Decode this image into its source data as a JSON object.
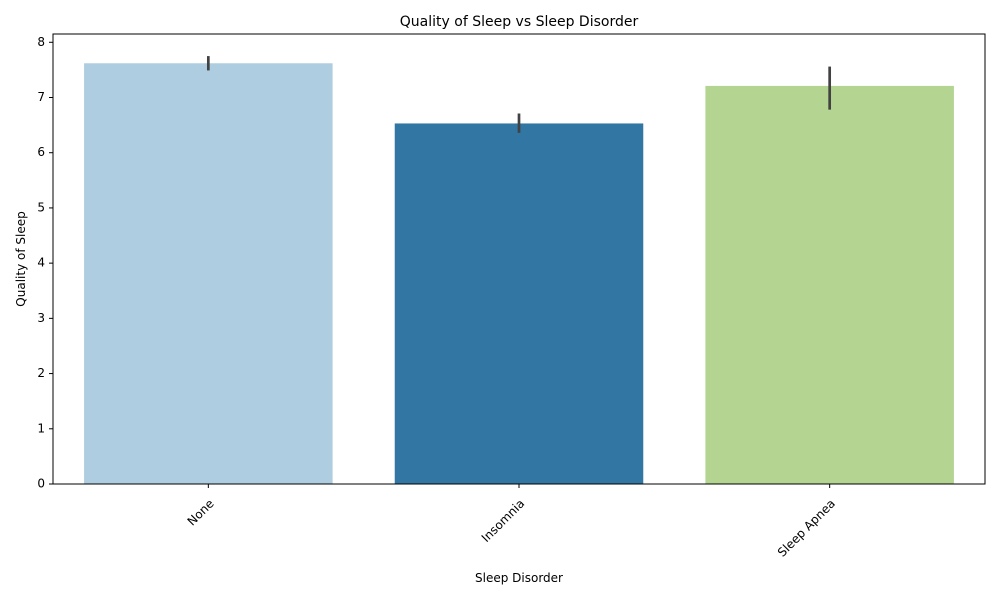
{
  "chart_data": {
    "type": "bar",
    "title": "Quality of Sleep vs Sleep Disorder",
    "xlabel": "Sleep Disorder",
    "ylabel": "Quality of Sleep",
    "categories": [
      "None",
      "Insomnia",
      "Sleep Apnea"
    ],
    "values": [
      7.62,
      6.53,
      7.21
    ],
    "error_bars": [
      {
        "low": 7.49,
        "high": 7.75
      },
      {
        "low": 6.36,
        "high": 6.71
      },
      {
        "low": 6.78,
        "high": 7.56
      }
    ],
    "colors": [
      "#afcde0",
      "#3276a3",
      "#b4d592"
    ],
    "ylim": [
      0,
      8.15
    ],
    "yticks": [
      0,
      1,
      2,
      3,
      4,
      5,
      6,
      7,
      8
    ],
    "grid": false,
    "legend": "none",
    "xtick_rotation": 45
  }
}
